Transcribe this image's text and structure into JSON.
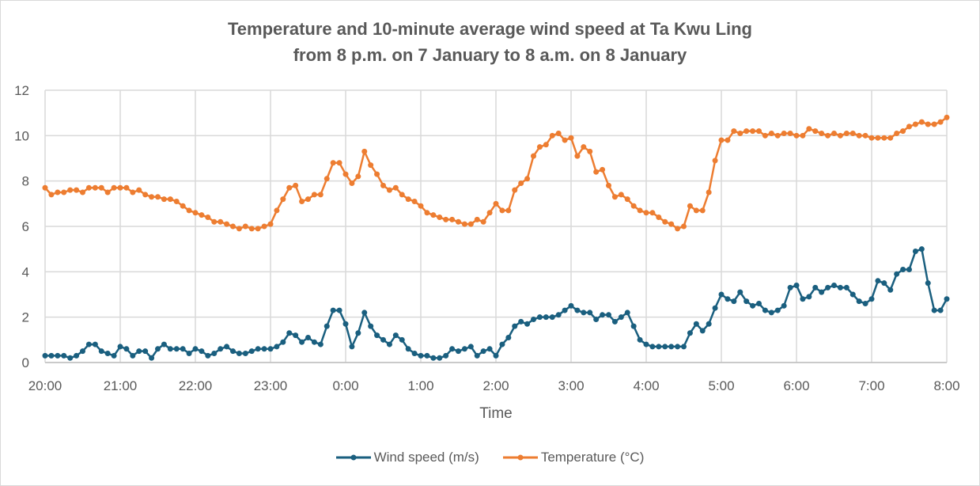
{
  "chart_data": {
    "type": "line",
    "title": "Temperature and 10-minute average wind speed at Ta Kwu Ling",
    "subtitle": "from 8 p.m. on 7 January to 8 a.m. on 8 January",
    "xlabel": "Time",
    "ylabel": "",
    "ylim": [
      0,
      12
    ],
    "yticks": [
      0,
      2,
      4,
      6,
      8,
      10,
      12
    ],
    "xtick_labels": [
      "20:00",
      "21:00",
      "22:00",
      "23:00",
      "0:00",
      "1:00",
      "2:00",
      "3:00",
      "4:00",
      "5:00",
      "6:00",
      "7:00",
      "8:00"
    ],
    "grid": true,
    "legend_position": "bottom",
    "x": [
      "20:00",
      "20:05",
      "20:10",
      "20:15",
      "20:20",
      "20:25",
      "20:30",
      "20:35",
      "20:40",
      "20:45",
      "20:50",
      "20:55",
      "21:00",
      "21:05",
      "21:10",
      "21:15",
      "21:20",
      "21:25",
      "21:30",
      "21:35",
      "21:40",
      "21:45",
      "21:50",
      "21:55",
      "22:00",
      "22:05",
      "22:10",
      "22:15",
      "22:20",
      "22:25",
      "22:30",
      "22:35",
      "22:40",
      "22:45",
      "22:50",
      "22:55",
      "23:00",
      "23:05",
      "23:10",
      "23:15",
      "23:20",
      "23:25",
      "23:30",
      "23:35",
      "23:40",
      "23:45",
      "23:50",
      "23:55",
      "0:00",
      "0:05",
      "0:10",
      "0:15",
      "0:20",
      "0:25",
      "0:30",
      "0:35",
      "0:40",
      "0:45",
      "0:50",
      "0:55",
      "1:00",
      "1:05",
      "1:10",
      "1:15",
      "1:20",
      "1:25",
      "1:30",
      "1:35",
      "1:40",
      "1:45",
      "1:50",
      "1:55",
      "2:00",
      "2:05",
      "2:10",
      "2:15",
      "2:20",
      "2:25",
      "2:30",
      "2:35",
      "2:40",
      "2:45",
      "2:50",
      "2:55",
      "3:00",
      "3:05",
      "3:10",
      "3:15",
      "3:20",
      "3:25",
      "3:30",
      "3:35",
      "3:40",
      "3:45",
      "3:50",
      "3:55",
      "4:00",
      "4:05",
      "4:10",
      "4:15",
      "4:20",
      "4:25",
      "4:30",
      "4:35",
      "4:40",
      "4:45",
      "4:50",
      "4:55",
      "5:00",
      "5:05",
      "5:10",
      "5:15",
      "5:20",
      "5:25",
      "5:30",
      "5:35",
      "5:40",
      "5:45",
      "5:50",
      "5:55",
      "6:00",
      "6:05",
      "6:10",
      "6:15",
      "6:20",
      "6:25",
      "6:30",
      "6:35",
      "6:40",
      "6:45",
      "6:50",
      "6:55",
      "7:00",
      "7:05",
      "7:10",
      "7:15",
      "7:20",
      "7:25",
      "7:30",
      "7:35",
      "7:40",
      "7:45",
      "7:50",
      "7:55",
      "8:00"
    ],
    "series": [
      {
        "name": "Wind speed (m/s)",
        "color": "#1a5f7f",
        "values": [
          0.3,
          0.3,
          0.3,
          0.3,
          0.2,
          0.3,
          0.5,
          0.8,
          0.8,
          0.5,
          0.4,
          0.3,
          0.7,
          0.6,
          0.3,
          0.5,
          0.5,
          0.2,
          0.6,
          0.8,
          0.6,
          0.6,
          0.6,
          0.4,
          0.6,
          0.5,
          0.3,
          0.4,
          0.6,
          0.7,
          0.5,
          0.4,
          0.4,
          0.5,
          0.6,
          0.6,
          0.6,
          0.7,
          0.9,
          1.3,
          1.2,
          0.9,
          1.1,
          0.9,
          0.8,
          1.6,
          2.3,
          2.3,
          1.7,
          0.7,
          1.3,
          2.2,
          1.6,
          1.2,
          1.0,
          0.8,
          1.2,
          1.0,
          0.6,
          0.4,
          0.3,
          0.3,
          0.2,
          0.2,
          0.3,
          0.6,
          0.5,
          0.6,
          0.7,
          0.3,
          0.5,
          0.6,
          0.3,
          0.8,
          1.1,
          1.6,
          1.8,
          1.7,
          1.9,
          2.0,
          2.0,
          2.0,
          2.1,
          2.3,
          2.5,
          2.3,
          2.2,
          2.2,
          1.9,
          2.1,
          2.1,
          1.8,
          2.0,
          2.2,
          1.6,
          1.0,
          0.8,
          0.7,
          0.7,
          0.7,
          0.7,
          0.7,
          0.7,
          1.3,
          1.7,
          1.4,
          1.7,
          2.4,
          3.0,
          2.8,
          2.7,
          3.1,
          2.7,
          2.5,
          2.6,
          2.3,
          2.2,
          2.3,
          2.5,
          3.3,
          3.4,
          2.8,
          2.9,
          3.3,
          3.1,
          3.3,
          3.4,
          3.3,
          3.3,
          3.0,
          2.7,
          2.6,
          2.8,
          3.6,
          3.5,
          3.2,
          3.9,
          4.1,
          4.1,
          4.9,
          5.0,
          3.5,
          2.3,
          2.3,
          2.8
        ]
      },
      {
        "name": "Temperature (°C)",
        "color": "#ed7d31",
        "values": [
          7.7,
          7.4,
          7.5,
          7.5,
          7.6,
          7.6,
          7.5,
          7.7,
          7.7,
          7.7,
          7.5,
          7.7,
          7.7,
          7.7,
          7.5,
          7.6,
          7.4,
          7.3,
          7.3,
          7.2,
          7.2,
          7.1,
          6.9,
          6.7,
          6.6,
          6.5,
          6.4,
          6.2,
          6.2,
          6.1,
          6.0,
          5.9,
          6.0,
          5.9,
          5.9,
          6.0,
          6.1,
          6.7,
          7.2,
          7.7,
          7.8,
          7.1,
          7.2,
          7.4,
          7.4,
          8.1,
          8.8,
          8.8,
          8.3,
          7.9,
          8.2,
          9.3,
          8.7,
          8.3,
          7.8,
          7.6,
          7.7,
          7.4,
          7.2,
          7.1,
          6.9,
          6.6,
          6.5,
          6.4,
          6.3,
          6.3,
          6.2,
          6.1,
          6.1,
          6.3,
          6.2,
          6.6,
          7.0,
          6.7,
          6.7,
          7.6,
          7.9,
          8.1,
          9.1,
          9.5,
          9.6,
          10.0,
          10.1,
          9.8,
          9.9,
          9.1,
          9.5,
          9.3,
          8.4,
          8.5,
          7.8,
          7.3,
          7.4,
          7.2,
          6.9,
          6.7,
          6.6,
          6.6,
          6.4,
          6.2,
          6.1,
          5.9,
          6.0,
          6.9,
          6.7,
          6.7,
          7.5,
          8.9,
          9.8,
          9.8,
          10.2,
          10.1,
          10.2,
          10.2,
          10.2,
          10.0,
          10.1,
          10.0,
          10.1,
          10.1,
          10.0,
          10.0,
          10.3,
          10.2,
          10.1,
          10.0,
          10.1,
          10.0,
          10.1,
          10.1,
          10.0,
          10.0,
          9.9,
          9.9,
          9.9,
          9.9,
          10.1,
          10.2,
          10.4,
          10.5,
          10.6,
          10.5,
          10.5,
          10.6,
          10.8
        ]
      }
    ]
  }
}
